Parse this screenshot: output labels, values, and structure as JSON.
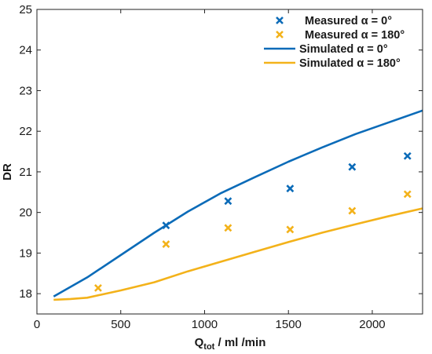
{
  "chart_data": {
    "type": "line",
    "xlabel": "Q",
    "xlabel_sub": "tot",
    "xlabel_rest": " / ml /min",
    "ylabel": "DR",
    "xlim": [
      0,
      2300
    ],
    "ylim": [
      17.5,
      25
    ],
    "xticks": [
      0,
      500,
      1000,
      1500,
      2000
    ],
    "yticks": [
      18,
      19,
      20,
      21,
      22,
      23,
      24,
      25
    ],
    "grid": false,
    "legend_position": "top-right",
    "colors": {
      "blue": "#0b6bb8",
      "orange": "#f3b21a"
    },
    "series": [
      {
        "name": "Measured α = 0°",
        "kind": "marker",
        "color": "#0b6bb8",
        "x": [
          770,
          1140,
          1510,
          1880,
          2210
        ],
        "y": [
          19.68,
          20.28,
          20.59,
          21.12,
          21.39
        ]
      },
      {
        "name": "Measured α = 180°",
        "kind": "marker",
        "color": "#f3b21a",
        "x": [
          365,
          770,
          1140,
          1510,
          1880,
          2210
        ],
        "y": [
          18.14,
          19.22,
          19.62,
          19.58,
          20.04,
          20.45
        ]
      },
      {
        "name": "Simulated α = 0°",
        "kind": "line",
        "color": "#0b6bb8",
        "x": [
          100,
          300,
          500,
          700,
          900,
          1100,
          1300,
          1500,
          1700,
          1900,
          2100,
          2300
        ],
        "y": [
          17.93,
          18.4,
          18.95,
          19.5,
          20.02,
          20.48,
          20.87,
          21.25,
          21.6,
          21.93,
          22.22,
          22.51
        ]
      },
      {
        "name": "Simulated α = 180°",
        "kind": "line",
        "color": "#f3b21a",
        "x": [
          100,
          200,
          300,
          500,
          700,
          900,
          1100,
          1300,
          1500,
          1700,
          1900,
          2100,
          2300
        ],
        "y": [
          17.85,
          17.87,
          17.9,
          18.08,
          18.28,
          18.55,
          18.79,
          19.03,
          19.27,
          19.5,
          19.71,
          19.91,
          20.1
        ]
      }
    ]
  }
}
